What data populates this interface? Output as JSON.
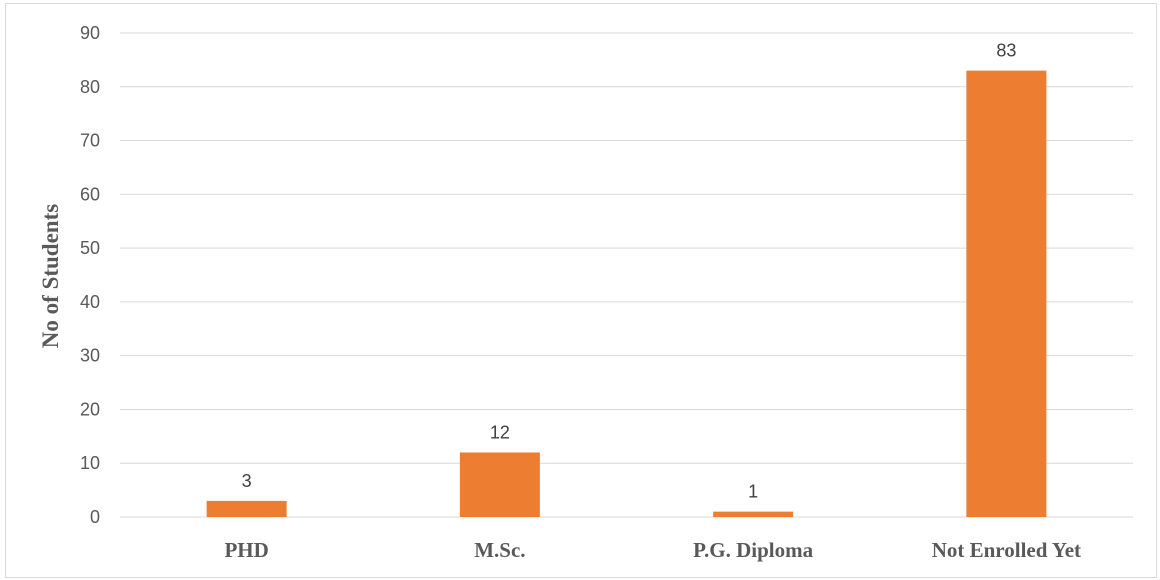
{
  "chart_data": {
    "type": "bar",
    "title": "",
    "xlabel": "",
    "ylabel": "No of Students",
    "categories": [
      "PHD",
      "M.Sc.",
      "P.G. Diploma",
      "Not Enrolled Yet"
    ],
    "values": [
      3,
      12,
      1,
      83
    ],
    "data_labels": [
      "3",
      "12",
      "1",
      "83"
    ],
    "y_ticks": [
      "0",
      "10",
      "20",
      "30",
      "40",
      "50",
      "60",
      "70",
      "80",
      "90"
    ],
    "ylim": [
      0,
      90
    ],
    "grid": true,
    "legend": "none",
    "bar_color": "#ed7d31",
    "grid_color": "#d9d9d9"
  }
}
